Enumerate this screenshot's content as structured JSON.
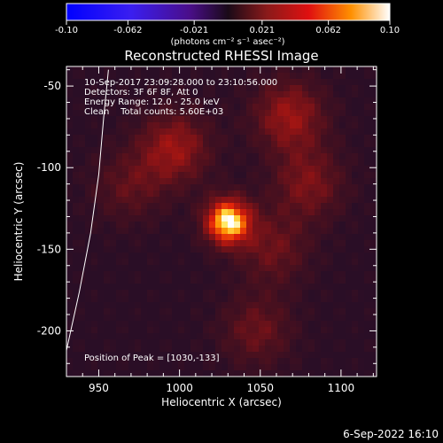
{
  "colorbar": {
    "min": -0.1,
    "max": 0.1,
    "tick_labels": [
      "-0.10",
      "-0.062",
      "-0.021",
      "0.021",
      "0.062",
      "0.10"
    ],
    "tick_values": [
      -0.1,
      -0.062,
      -0.021,
      0.021,
      0.062,
      0.1
    ],
    "units": "(photons cm⁻² s⁻¹ asec⁻²)"
  },
  "chart_data": {
    "type": "heatmap",
    "title": "Reconstructed RHESSI Image",
    "xlabel": "Heliocentric X (arcsec)",
    "ylabel": "Heliocentric Y (arcsec)",
    "xlim": [
      930,
      1122
    ],
    "ylim": [
      -228,
      -38
    ],
    "x_ticks": [
      950,
      1000,
      1050,
      1100
    ],
    "y_ticks": [
      -50,
      -100,
      -150,
      -200
    ],
    "x_tick_labels": [
      "950",
      "1000",
      "1050",
      "1100"
    ],
    "y_tick_labels": [
      "-50",
      "-100",
      "-150",
      "-200"
    ],
    "peak_position": [
      1030,
      -133
    ],
    "sources": [
      {
        "x": 1030,
        "y": -133,
        "amplitude": 0.1
      },
      {
        "x": 997,
        "y": -88,
        "amplitude": 0.045
      },
      {
        "x": 1068,
        "y": -68,
        "amplitude": 0.045
      },
      {
        "x": 1080,
        "y": -110,
        "amplitude": 0.035
      },
      {
        "x": 1058,
        "y": -150,
        "amplitude": 0.03
      },
      {
        "x": 1048,
        "y": -200,
        "amplitude": 0.03
      },
      {
        "x": 968,
        "y": -112,
        "amplitude": 0.025
      }
    ],
    "limb": [
      [
        930,
        -212
      ],
      [
        938,
        -176
      ],
      [
        945,
        -140
      ],
      [
        950,
        -104
      ],
      [
        953,
        -70
      ],
      [
        956,
        -40
      ]
    ]
  },
  "annotations": {
    "time": "10-Sep-2017 23:09:28.000 to 23:10:56.000",
    "detectors": "Detectors: 3F 6F 8F, Att 0",
    "energy": "Energy Range: 12.0 - 25.0 keV",
    "clean": "Clean    Total counts: 5.60E+03",
    "peak": "Position of Peak = [1030,-133]"
  },
  "footer": {
    "date": "6-Sep-2022 16:10"
  }
}
